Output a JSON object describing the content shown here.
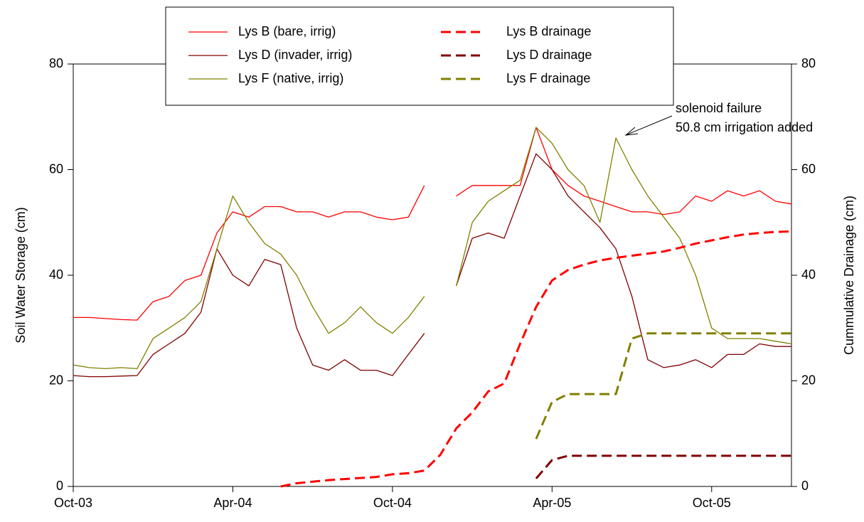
{
  "chart_data": {
    "type": "line",
    "y_label": "Soil Water Storage (cm)",
    "y2_label": "Cummulative Drainage (cm)",
    "annotation": [
      "solenoid failure",
      "50.8 cm irrigation added"
    ],
    "x": [
      2003.75,
      2003.8,
      2003.85,
      2003.9,
      2003.95,
      2004.0,
      2004.05,
      2004.1,
      2004.15,
      2004.2,
      2004.25,
      2004.3,
      2004.35,
      2004.4,
      2004.45,
      2004.5,
      2004.55,
      2004.6,
      2004.65,
      2004.7,
      2004.75,
      2004.8,
      2004.85,
      2004.9,
      2004.95,
      2005.0,
      2005.05,
      2005.1,
      2005.15,
      2005.2,
      2005.25,
      2005.3,
      2005.35,
      2005.4,
      2005.45,
      2005.5,
      2005.55,
      2005.6,
      2005.65,
      2005.7,
      2005.75,
      2005.8,
      2005.85,
      2005.9,
      2005.95,
      2006.0
    ],
    "xlim": [
      2003.75,
      2006.0
    ],
    "xticks": [
      {
        "value": 2003.75,
        "label": "Oct-03"
      },
      {
        "value": 2004.25,
        "label": "Apr-04"
      },
      {
        "value": 2004.75,
        "label": "Oct-04"
      },
      {
        "value": 2005.25,
        "label": "Apr-05"
      },
      {
        "value": 2005.75,
        "label": "Oct-05"
      }
    ],
    "ylim": [
      0,
      80
    ],
    "yticks": [
      0,
      20,
      40,
      60,
      80
    ],
    "y2lim": [
      0,
      80
    ],
    "y2ticks": [
      0,
      20,
      40,
      60,
      80
    ],
    "series": [
      {
        "name": "Lys B (bare, irrig)",
        "color": "#ff0000",
        "line_style": "solid",
        "values": [
          32,
          32,
          31.8,
          31.6,
          31.5,
          35,
          36,
          39,
          40,
          48,
          52,
          51,
          53,
          53,
          52,
          52,
          51,
          52,
          52,
          51,
          50.5,
          51,
          57,
          null,
          55,
          57,
          57,
          57,
          57,
          68,
          60,
          57,
          55,
          54,
          53,
          52,
          52,
          51.5,
          52,
          55,
          54,
          56,
          55,
          56,
          54,
          53.5
        ]
      },
      {
        "name": "Lys D (invader, irrig)",
        "color": "#800000",
        "line_style": "solid",
        "values": [
          21,
          20.8,
          20.8,
          20.9,
          21,
          25,
          27,
          29,
          33,
          45,
          40,
          38,
          43,
          42,
          30,
          23,
          22,
          24,
          22,
          22,
          21,
          25,
          29,
          null,
          38,
          47,
          48,
          47,
          55,
          63,
          60,
          55,
          52,
          49,
          45,
          36,
          24,
          22.5,
          23,
          24,
          22.5,
          25,
          25,
          27,
          26.5,
          26.5
        ]
      },
      {
        "name": "Lys F (native, irrig)",
        "color": "#808000",
        "line_style": "solid",
        "values": [
          23,
          22.5,
          22.3,
          22.5,
          22.3,
          28,
          30,
          32,
          35,
          45,
          55,
          50,
          46,
          44,
          40,
          34,
          29,
          31,
          34,
          31,
          29,
          32,
          36,
          null,
          38,
          50,
          54,
          56,
          58,
          68,
          65,
          60,
          57,
          50,
          66,
          60,
          55,
          51,
          47,
          40,
          30,
          28,
          28,
          28,
          27.5,
          27
        ]
      },
      {
        "name": "Lys B drainage",
        "color": "#ff0000",
        "line_style": "dashed",
        "axis": "y2",
        "values": [
          null,
          null,
          null,
          null,
          null,
          null,
          null,
          null,
          null,
          null,
          null,
          null,
          null,
          0,
          0.6,
          0.9,
          1.2,
          1.4,
          1.6,
          1.8,
          2.3,
          2.5,
          3,
          6,
          11,
          14,
          18,
          19.5,
          27,
          34,
          39,
          41,
          42,
          42.8,
          43.3,
          43.7,
          44.1,
          44.5,
          45.2,
          46,
          46.6,
          47.2,
          47.7,
          48,
          48.2,
          48.3
        ]
      },
      {
        "name": "Lys D drainage",
        "color": "#800000",
        "line_style": "dashed",
        "axis": "y2",
        "values": [
          null,
          null,
          null,
          null,
          null,
          null,
          null,
          null,
          null,
          null,
          null,
          null,
          null,
          null,
          null,
          null,
          null,
          null,
          null,
          null,
          null,
          null,
          null,
          null,
          null,
          null,
          null,
          null,
          null,
          1.5,
          5,
          5.8,
          5.8,
          5.8,
          5.8,
          5.8,
          5.8,
          5.8,
          5.8,
          5.8,
          5.8,
          5.8,
          5.8,
          5.8,
          5.8,
          5.8
        ]
      },
      {
        "name": "Lys F drainage",
        "color": "#808000",
        "line_style": "dashed",
        "axis": "y2",
        "values": [
          null,
          null,
          null,
          null,
          null,
          null,
          null,
          null,
          null,
          null,
          null,
          null,
          null,
          null,
          null,
          null,
          null,
          null,
          null,
          null,
          null,
          null,
          null,
          null,
          null,
          null,
          null,
          null,
          null,
          9,
          16,
          17.5,
          17.5,
          17.5,
          17.5,
          28,
          29,
          29,
          29,
          29,
          29,
          29,
          29,
          29,
          29,
          29
        ]
      }
    ]
  }
}
